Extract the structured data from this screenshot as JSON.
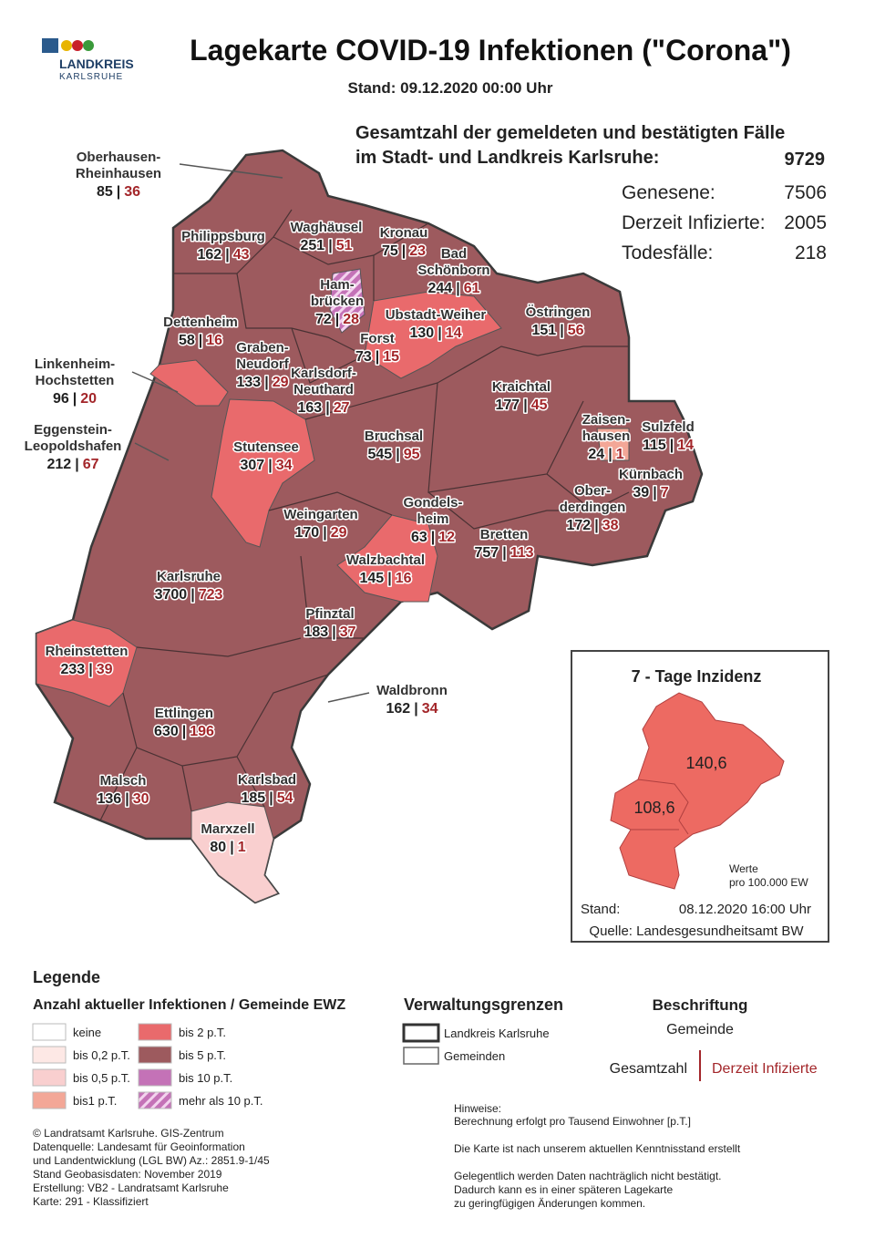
{
  "header": {
    "logo_line1": "LANDKREIS",
    "logo_line2": "KARLSRUHE",
    "title": "Lagekarte COVID-19 Infektionen (\"Corona\")",
    "date": "Stand: 09.12.2020 00:00 Uhr"
  },
  "totals": {
    "heading": [
      "Gesamtzahl der gemeldeten und bestätigten Fälle",
      "im Stadt- und Landkreis Karlsruhe:"
    ],
    "total": 9729,
    "rows": [
      {
        "label": "Genesene:",
        "value": 7506
      },
      {
        "label": "Derzeit Infizierte:",
        "value": 2005
      },
      {
        "label": "Todesfälle:",
        "value": 218
      }
    ]
  },
  "map": {
    "separator": "|",
    "municipalities": [
      {
        "name": [
          "Oberhausen-",
          "Rheinhausen"
        ],
        "total": 85,
        "active": 36
      },
      {
        "name": [
          "Philippsburg"
        ],
        "total": 162,
        "active": 43
      },
      {
        "name": [
          "Waghäusel"
        ],
        "total": 251,
        "active": 51
      },
      {
        "name": [
          "Kronau"
        ],
        "total": 75,
        "active": 23
      },
      {
        "name": [
          "Bad",
          "Schönborn"
        ],
        "total": 244,
        "active": 61
      },
      {
        "name": [
          "Ham-",
          "brücken"
        ],
        "total": 72,
        "active": 28
      },
      {
        "name": [
          "Ubstadt-Weiher"
        ],
        "total": 130,
        "active": 14
      },
      {
        "name": [
          "Östringen"
        ],
        "total": 151,
        "active": 56
      },
      {
        "name": [
          "Dettenheim"
        ],
        "total": 58,
        "active": 16
      },
      {
        "name": [
          "Graben-",
          "Neudorf"
        ],
        "total": 133,
        "active": 29
      },
      {
        "name": [
          "Forst"
        ],
        "total": 73,
        "active": 15
      },
      {
        "name": [
          "Karlsdorf-",
          "Neuthard"
        ],
        "total": 163,
        "active": 27
      },
      {
        "name": [
          "Linkenheim-",
          "Hochstetten"
        ],
        "total": 96,
        "active": 20
      },
      {
        "name": [
          "Kraichtal"
        ],
        "total": 177,
        "active": 45
      },
      {
        "name": [
          "Zaisen-",
          "hausen"
        ],
        "total": 24,
        "active": 1
      },
      {
        "name": [
          "Sulzfeld"
        ],
        "total": 115,
        "active": 14
      },
      {
        "name": [
          "Eggenstein-",
          "Leopoldshafen"
        ],
        "total": 212,
        "active": 67
      },
      {
        "name": [
          "Bruchsal"
        ],
        "total": 545,
        "active": 95
      },
      {
        "name": [
          "Stutensee"
        ],
        "total": 307,
        "active": 34
      },
      {
        "name": [
          "Kürnbach"
        ],
        "total": 39,
        "active": 7
      },
      {
        "name": [
          "Ober-",
          "derdingen"
        ],
        "total": 172,
        "active": 38
      },
      {
        "name": [
          "Gondels-",
          "heim"
        ],
        "total": 63,
        "active": 12
      },
      {
        "name": [
          "Weingarten"
        ],
        "total": 170,
        "active": 29
      },
      {
        "name": [
          "Bretten"
        ],
        "total": 757,
        "active": 113
      },
      {
        "name": [
          "Walzbachtal"
        ],
        "total": 145,
        "active": 16
      },
      {
        "name": [
          "Karlsruhe"
        ],
        "total": 3700,
        "active": 723
      },
      {
        "name": [
          "Pfinztal"
        ],
        "total": 183,
        "active": 37
      },
      {
        "name": [
          "Rheinstetten"
        ],
        "total": 233,
        "active": 39
      },
      {
        "name": [
          "Waldbronn"
        ],
        "total": 162,
        "active": 34
      },
      {
        "name": [
          "Ettlingen"
        ],
        "total": 630,
        "active": 196
      },
      {
        "name": [
          "Malsch"
        ],
        "total": 136,
        "active": 30
      },
      {
        "name": [
          "Karlsbad"
        ],
        "total": 185,
        "active": 54
      },
      {
        "name": [
          "Marxzell"
        ],
        "total": 80,
        "active": 1
      }
    ]
  },
  "inset": {
    "title": "7 - Tage Inzidenz",
    "values": [
      "140,6",
      "108,6"
    ],
    "note": [
      "Werte",
      "pro 100.000 EW"
    ],
    "stand_label": "Stand:",
    "stand_date": "08.12.2020 16:00 Uhr",
    "source": "Quelle: Landesgesundheitsamt BW"
  },
  "legend": {
    "title": "Legende",
    "subtitle": "Anzahl aktueller Infektionen / Gemeinde EWZ",
    "classes": [
      {
        "label": "keine",
        "color": "#ffffff"
      },
      {
        "label": "bis 0,2 p.T.",
        "color": "#fde8e5"
      },
      {
        "label": "bis 0,5 p.T.",
        "color": "#f9cfcf"
      },
      {
        "label": "bis1 p.T.",
        "color": "#f3a797"
      },
      {
        "label": "bis 2  p.T.",
        "color": "#e96a6c"
      },
      {
        "label": "bis 5 p.T.",
        "color": "#9d5a5e"
      },
      {
        "label": "bis 10 p.T.",
        "color": "#c472b7"
      },
      {
        "label": "mehr als 10 p.T.",
        "color": "#c472b7",
        "pattern": "hatch"
      }
    ],
    "borders_title": "Verwaltungsgrenzen",
    "borders": [
      "Landkreis Karlsruhe",
      "Gemeinden"
    ],
    "labeling_title": "Beschriftung",
    "labeling_name": "Gemeinde",
    "labeling_total": "Gesamtzahl",
    "labeling_active": "Derzeit Infizierte"
  },
  "credits": [
    "© Landratsamt Karlsruhe. GIS-Zentrum",
    "Datenquelle: Landesamt für Geoinformation",
    "und Landentwicklung (LGL BW) Az.: 2851.9-1/45",
    "Stand Geobasisdaten: November 2019",
    "Erstellung: VB2 - Landratsamt Karlsruhe",
    "Karte: 291 - Klassifiziert"
  ],
  "notes": [
    "Hinweise:",
    "Berechnung erfolgt pro Tausend Einwohner  [p.T.]",
    "Die Karte ist nach unserem aktuellen Kenntnisstand erstellt",
    "Gelegentlich werden Daten nachträglich nicht bestätigt.",
    "Dadurch kann es in einer späteren Lagekarte",
    "zu geringfügigen Änderungen kommen."
  ]
}
